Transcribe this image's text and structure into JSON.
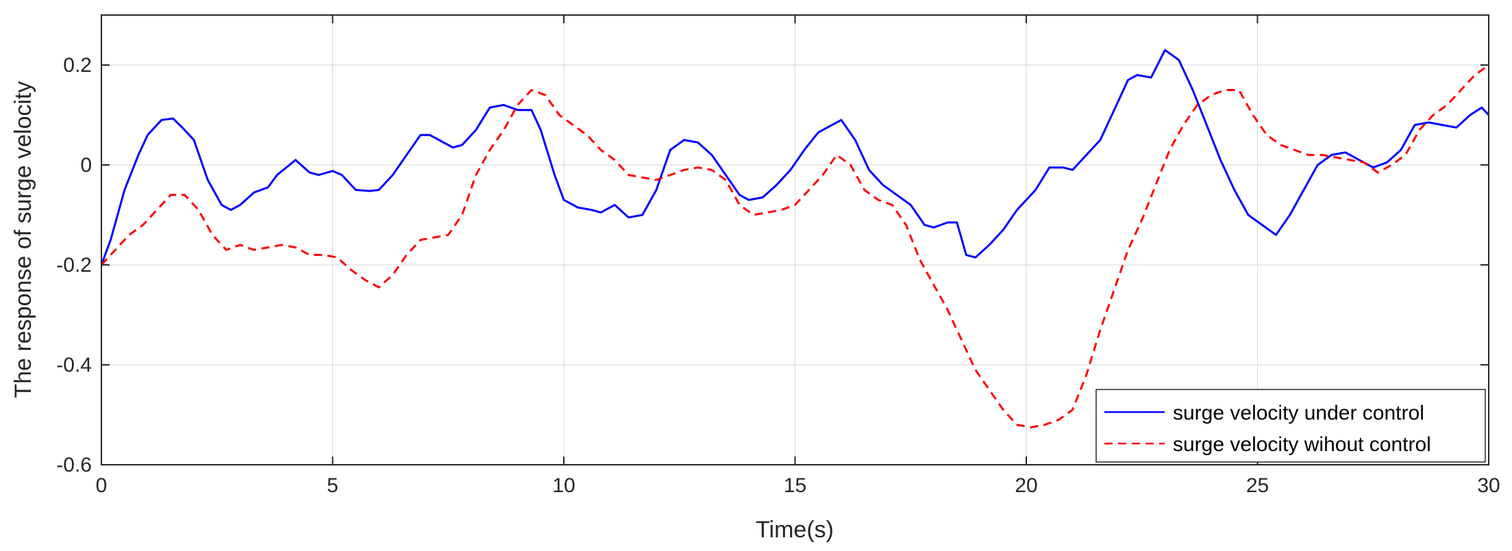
{
  "chart_data": {
    "type": "line",
    "title": "",
    "xlabel": "Time(s)",
    "ylabel": "The response of surge velocity",
    "xlim": [
      0,
      30
    ],
    "ylim": [
      -0.6,
      0.3
    ],
    "xticks": [
      0,
      5,
      10,
      15,
      20,
      25,
      30
    ],
    "xtick_labels": [
      "0",
      "5",
      "10",
      "15",
      "20",
      "25",
      "30"
    ],
    "yticks": [
      -0.6,
      -0.4,
      -0.2,
      0,
      0.2
    ],
    "ytick_labels": [
      "-0.6",
      "-0.4",
      "-0.2",
      "0",
      "0.2"
    ],
    "grid": true,
    "legend_position": "bottom-right",
    "series": [
      {
        "name": "surge velocity under control",
        "color": "#0000ff",
        "style": "solid",
        "x": [
          0,
          0.2,
          0.5,
          0.8,
          1.0,
          1.3,
          1.55,
          1.75,
          2.0,
          2.3,
          2.6,
          2.8,
          3.0,
          3.3,
          3.6,
          3.8,
          4.0,
          4.2,
          4.5,
          4.7,
          5.0,
          5.2,
          5.5,
          5.8,
          6.0,
          6.3,
          6.6,
          6.9,
          7.1,
          7.3,
          7.6,
          7.8,
          8.1,
          8.4,
          8.7,
          9.0,
          9.3,
          9.5,
          9.8,
          10.0,
          10.3,
          10.6,
          10.8,
          11.1,
          11.4,
          11.7,
          12.0,
          12.3,
          12.6,
          12.9,
          13.2,
          13.5,
          13.8,
          14.0,
          14.3,
          14.6,
          14.9,
          15.2,
          15.5,
          15.8,
          16.0,
          16.3,
          16.6,
          16.9,
          17.2,
          17.5,
          17.8,
          18.0,
          18.3,
          18.5,
          18.7,
          18.9,
          19.2,
          19.5,
          19.8,
          20.2,
          20.5,
          20.8,
          21.0,
          21.3,
          21.6,
          21.9,
          22.2,
          22.4,
          22.7,
          23.0,
          23.3,
          23.6,
          23.9,
          24.2,
          24.5,
          24.8,
          25.1,
          25.4,
          25.7,
          26.0,
          26.3,
          26.6,
          26.9,
          27.2,
          27.5,
          27.8,
          28.1,
          28.4,
          28.7,
          29.0,
          29.3,
          29.6,
          29.85,
          30.0
        ],
        "y": [
          -0.2,
          -0.15,
          -0.05,
          0.02,
          0.06,
          0.09,
          0.093,
          0.075,
          0.05,
          -0.03,
          -0.08,
          -0.09,
          -0.08,
          -0.055,
          -0.045,
          -0.02,
          -0.005,
          0.01,
          -0.015,
          -0.02,
          -0.012,
          -0.02,
          -0.05,
          -0.052,
          -0.05,
          -0.02,
          0.02,
          0.06,
          0.06,
          0.05,
          0.035,
          0.04,
          0.07,
          0.115,
          0.12,
          0.11,
          0.11,
          0.07,
          -0.02,
          -0.07,
          -0.085,
          -0.09,
          -0.095,
          -0.08,
          -0.105,
          -0.1,
          -0.05,
          0.03,
          0.05,
          0.045,
          0.02,
          -0.02,
          -0.06,
          -0.07,
          -0.065,
          -0.04,
          -0.01,
          0.03,
          0.065,
          0.08,
          0.09,
          0.05,
          -0.01,
          -0.04,
          -0.06,
          -0.08,
          -0.12,
          -0.125,
          -0.115,
          -0.115,
          -0.18,
          -0.185,
          -0.16,
          -0.13,
          -0.09,
          -0.05,
          -0.005,
          -0.005,
          -0.01,
          0.02,
          0.05,
          0.11,
          0.17,
          0.18,
          0.175,
          0.23,
          0.21,
          0.15,
          0.08,
          0.01,
          -0.05,
          -0.1,
          -0.12,
          -0.14,
          -0.1,
          -0.05,
          0.0,
          0.02,
          0.025,
          0.01,
          -0.005,
          0.005,
          0.03,
          0.08,
          0.085,
          0.08,
          0.075,
          0.1,
          0.115,
          0.1
        ]
      },
      {
        "name": "surge velocity wihout control",
        "color": "#ff0000",
        "style": "dashed",
        "x": [
          0,
          0.3,
          0.6,
          0.9,
          1.2,
          1.5,
          1.8,
          2.1,
          2.4,
          2.7,
          3.0,
          3.3,
          3.6,
          3.9,
          4.2,
          4.5,
          4.8,
          5.1,
          5.4,
          5.7,
          6.0,
          6.3,
          6.6,
          6.9,
          7.2,
          7.5,
          7.8,
          8.1,
          8.4,
          8.7,
          9.0,
          9.3,
          9.6,
          9.9,
          10.2,
          10.5,
          10.8,
          11.1,
          11.4,
          11.7,
          12.0,
          12.3,
          12.6,
          12.9,
          13.2,
          13.5,
          13.8,
          14.1,
          14.4,
          14.7,
          15.0,
          15.3,
          15.6,
          15.9,
          16.2,
          16.5,
          16.8,
          17.1,
          17.4,
          17.7,
          18.0,
          18.3,
          18.6,
          18.9,
          19.2,
          19.5,
          19.8,
          20.1,
          20.4,
          20.7,
          21.0,
          21.3,
          21.6,
          21.9,
          22.2,
          22.5,
          22.8,
          23.1,
          23.4,
          23.7,
          24.0,
          24.3,
          24.6,
          24.9,
          25.2,
          25.5,
          25.8,
          26.1,
          26.4,
          26.7,
          27.0,
          27.3,
          27.6,
          27.9,
          28.2,
          28.5,
          28.8,
          29.1,
          29.4,
          29.7,
          30.0
        ],
        "y": [
          -0.2,
          -0.17,
          -0.14,
          -0.12,
          -0.09,
          -0.06,
          -0.06,
          -0.09,
          -0.14,
          -0.17,
          -0.16,
          -0.17,
          -0.165,
          -0.16,
          -0.165,
          -0.18,
          -0.18,
          -0.185,
          -0.21,
          -0.23,
          -0.245,
          -0.22,
          -0.18,
          -0.15,
          -0.145,
          -0.14,
          -0.1,
          -0.02,
          0.03,
          0.07,
          0.12,
          0.15,
          0.14,
          0.1,
          0.08,
          0.06,
          0.03,
          0.01,
          -0.02,
          -0.025,
          -0.03,
          -0.02,
          -0.01,
          -0.005,
          -0.01,
          -0.03,
          -0.08,
          -0.1,
          -0.095,
          -0.09,
          -0.08,
          -0.05,
          -0.02,
          0.02,
          0.0,
          -0.05,
          -0.07,
          -0.08,
          -0.12,
          -0.19,
          -0.24,
          -0.29,
          -0.35,
          -0.41,
          -0.45,
          -0.49,
          -0.52,
          -0.525,
          -0.52,
          -0.51,
          -0.49,
          -0.42,
          -0.33,
          -0.25,
          -0.17,
          -0.11,
          -0.04,
          0.03,
          0.08,
          0.12,
          0.14,
          0.15,
          0.15,
          0.1,
          0.06,
          0.04,
          0.03,
          0.02,
          0.02,
          0.015,
          0.01,
          0.005,
          -0.015,
          0.0,
          0.02,
          0.07,
          0.1,
          0.12,
          0.15,
          0.18,
          0.2
        ]
      }
    ]
  }
}
